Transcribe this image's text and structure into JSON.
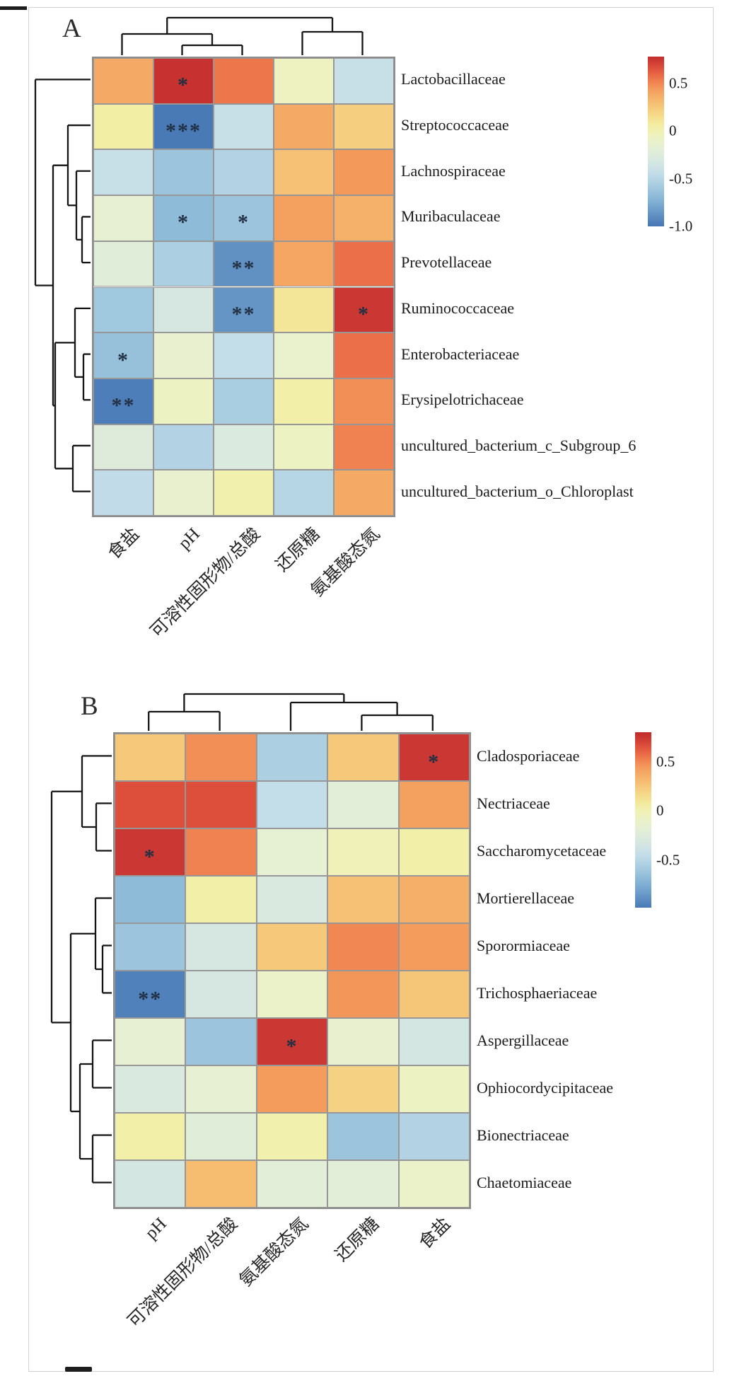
{
  "colors": {
    "colormap": [
      [
        -1.0,
        "#4575b4"
      ],
      [
        -0.75,
        "#7fafd3"
      ],
      [
        -0.6,
        "#a0c8de"
      ],
      [
        -0.45,
        "#c3dde9"
      ],
      [
        -0.3,
        "#d9e9e0"
      ],
      [
        -0.15,
        "#e7f0d2"
      ],
      [
        -0.05,
        "#eef2c0"
      ],
      [
        0.05,
        "#f2efa5"
      ],
      [
        0.15,
        "#f5dd8d"
      ],
      [
        0.3,
        "#f6bd70"
      ],
      [
        0.45,
        "#f39a5b"
      ],
      [
        0.55,
        "#ee764b"
      ],
      [
        0.65,
        "#e0523c"
      ],
      [
        0.75,
        "#c93431"
      ],
      [
        0.8,
        "#c02a2c"
      ]
    ],
    "grid_line": "#979797",
    "dendrogram_line": "#141414",
    "significance_marker": "#223044"
  },
  "chart_data": [
    {
      "panel_label": "A",
      "type": "heatmap",
      "legend_position": "right",
      "rows": [
        "Lactobacillaceae",
        "Streptococcaceae",
        "Lachnospiraceae",
        "Muribaculaceae",
        "Prevotellaceae",
        "Ruminococcaceae",
        "Enterobacteriaceae",
        "Erysipelotrichaceae",
        "uncultured_bacterium_c_Subgroup_6",
        "uncultured_bacterium_o_Chloroplast"
      ],
      "columns": [
        "食盐",
        "pH",
        "可溶性固形物/总酸",
        "还原糖",
        "氨基酸态氮"
      ],
      "values": [
        [
          0.38,
          0.76,
          0.55,
          -0.05,
          -0.42
        ],
        [
          0.05,
          -0.98,
          -0.42,
          0.38,
          0.22
        ],
        [
          -0.42,
          -0.62,
          -0.52,
          0.28,
          0.45
        ],
        [
          -0.15,
          -0.68,
          -0.62,
          0.42,
          0.35
        ],
        [
          -0.22,
          -0.55,
          -0.88,
          0.4,
          0.57
        ],
        [
          -0.6,
          -0.32,
          -0.86,
          0.1,
          0.74
        ],
        [
          -0.64,
          -0.14,
          -0.45,
          -0.12,
          0.57
        ],
        [
          -0.96,
          -0.06,
          -0.56,
          0.04,
          0.48
        ],
        [
          -0.25,
          -0.52,
          -0.28,
          -0.06,
          0.52
        ],
        [
          -0.46,
          -0.13,
          0.02,
          -0.5,
          0.38
        ]
      ],
      "significance": [
        [
          "",
          "*",
          "",
          "",
          ""
        ],
        [
          "",
          "***",
          "",
          "",
          ""
        ],
        [
          "",
          "",
          "",
          "",
          ""
        ],
        [
          "",
          "*",
          "*",
          "",
          ""
        ],
        [
          "",
          "",
          "**",
          "",
          ""
        ],
        [
          "",
          "",
          "**",
          "",
          "*"
        ],
        [
          "*",
          "",
          "",
          "",
          ""
        ],
        [
          "**",
          "",
          "",
          "",
          ""
        ],
        [
          "",
          "",
          "",
          "",
          ""
        ],
        [
          "",
          "",
          "",
          "",
          ""
        ]
      ],
      "colorbar": {
        "top_value": 0.78,
        "bottom_value": -1.0,
        "ticks": [
          {
            "label": "0.5",
            "value": 0.5
          },
          {
            "label": "0",
            "value": 0
          },
          {
            "label": "-0.5",
            "value": -0.5
          },
          {
            "label": "-1.0",
            "value": -1.0
          }
        ]
      },
      "row_dendrogram": {
        "d": 78,
        "c": [
          0,
          {
            "d": 53,
            "c": [
              {
                "d": 32,
                "c": [
                  1,
                  {
                    "d": 20,
                    "c": [
                      2,
                      {
                        "d": 12,
                        "c": [
                          3,
                          4
                        ]
                      }
                    ]
                  }
                ]
              },
              {
                "d": 50,
                "c": [
                  {
                    "d": 22,
                    "c": [
                      5,
                      {
                        "d": 10,
                        "c": [
                          6,
                          7
                        ]
                      }
                    ]
                  },
                  {
                    "d": 25,
                    "c": [
                      8,
                      9
                    ]
                  }
                ]
              }
            ]
          }
        ]
      },
      "col_dendrogram": {
        "d": 53,
        "c": [
          {
            "d": 30,
            "c": [
              0,
              {
                "d": 14,
                "c": [
                  1,
                  2
                ]
              }
            ]
          },
          {
            "d": 33,
            "c": [
              3,
              4
            ]
          }
        ]
      }
    },
    {
      "panel_label": "B",
      "type": "heatmap",
      "legend_position": "right",
      "rows": [
        "Cladosporiaceae",
        "Nectriaceae",
        "Saccharomycetaceae",
        "Mortierellaceae",
        "Sporormiaceae",
        "Trichosphaeriaceae",
        "Aspergillaceae",
        "Ophiocordycipitaceae",
        "Bionectriaceae",
        "Chaetomiaceae"
      ],
      "columns": [
        "pH",
        "可溶性固形物/总酸",
        "氨基酸态氮",
        "还原糖",
        "食盐"
      ],
      "values": [
        [
          0.25,
          0.48,
          -0.55,
          0.25,
          0.74
        ],
        [
          0.66,
          0.66,
          -0.45,
          -0.2,
          0.42
        ],
        [
          0.74,
          0.52,
          -0.16,
          -0.02,
          0.04
        ],
        [
          -0.68,
          0.04,
          -0.3,
          0.28,
          0.36
        ],
        [
          -0.62,
          -0.32,
          0.25,
          0.5,
          0.44
        ],
        [
          -0.95,
          -0.32,
          -0.1,
          0.46,
          0.26
        ],
        [
          -0.15,
          -0.62,
          0.74,
          -0.14,
          -0.34
        ],
        [
          -0.3,
          -0.15,
          0.44,
          0.2,
          -0.06
        ],
        [
          0.04,
          -0.22,
          0.02,
          -0.62,
          -0.52
        ],
        [
          -0.34,
          0.3,
          -0.2,
          -0.2,
          -0.1
        ]
      ],
      "significance": [
        [
          "",
          "",
          "",
          "",
          "*"
        ],
        [
          "",
          "",
          "",
          "",
          ""
        ],
        [
          "*",
          "",
          "",
          "",
          ""
        ],
        [
          "",
          "",
          "",
          "",
          ""
        ],
        [
          "",
          "",
          "",
          "",
          ""
        ],
        [
          "**",
          "",
          "",
          "",
          ""
        ],
        [
          "",
          "",
          "*",
          "",
          ""
        ],
        [
          "",
          "",
          "",
          "",
          ""
        ],
        [
          "",
          "",
          "",
          "",
          ""
        ],
        [
          "",
          "",
          "",
          "",
          ""
        ]
      ],
      "colorbar": {
        "top_value": 0.8,
        "bottom_value": -0.98,
        "ticks": [
          {
            "label": "0.5",
            "value": 0.5
          },
          {
            "label": "0",
            "value": 0
          },
          {
            "label": "-0.5",
            "value": -0.5
          }
        ]
      },
      "row_dendrogram": {
        "d": 85,
        "c": [
          {
            "d": 42,
            "c": [
              0,
              {
                "d": 22,
                "c": [
                  1,
                  2
                ]
              }
            ]
          },
          {
            "d": 58,
            "c": [
              {
                "d": 23,
                "c": [
                  3,
                  {
                    "d": 13,
                    "c": [
                      4,
                      5
                    ]
                  }
                ]
              },
              {
                "d": 45,
                "c": [
                  {
                    "d": 27,
                    "c": [
                      6,
                      7
                    ]
                  },
                  {
                    "d": 27,
                    "c": [
                      8,
                      9
                    ]
                  }
                ]
              }
            ]
          }
        ]
      },
      "col_dendrogram": {
        "d": 52,
        "c": [
          {
            "d": 27,
            "c": [
              0,
              1
            ]
          },
          {
            "d": 40,
            "c": [
              2,
              {
                "d": 22,
                "c": [
                  3,
                  4
                ]
              }
            ]
          }
        ]
      }
    }
  ]
}
